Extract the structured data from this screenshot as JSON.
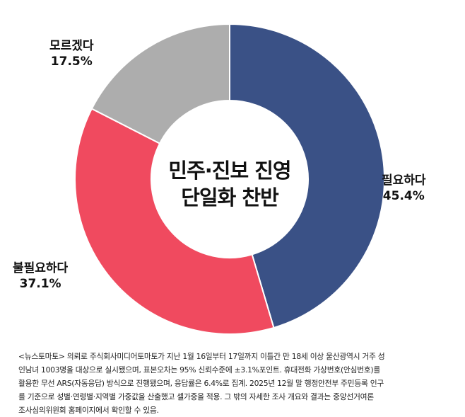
{
  "chart_data": {
    "type": "pie",
    "title": "민주·진보 진영 단일화 찬반",
    "title_lines": [
      "민주·진보 진영",
      "단일화 찬반"
    ],
    "categories": [
      "필요하다",
      "불필요하다",
      "모르겠다"
    ],
    "values": [
      45.4,
      37.1,
      17.5
    ],
    "value_labels": [
      "45.4%",
      "37.1%",
      "17.5%"
    ],
    "colors": [
      "#3A5186",
      "#F04A5F",
      "#ADADAD"
    ],
    "donut": true
  },
  "note": {
    "lines": [
      "<뉴스토마토> 의뢰로 주식회사미디어토마토가 지난 1월 16일부터 17일까지 이틀간 만 18세 이상 울산광역시 거주 성",
      "인남녀 1003명을 대상으로 실시됐으며, 표본오차는 95% 신뢰수준에 ±3.1%포인트. 휴대전화 가상번호(안심번호)를",
      "활용한 무선 ARS(자동응답) 방식으로 진행됐으며, 응답률은 6.4%로 집계. 2025년 12월 말 행정안전부 주민등록 인구",
      "를 기준으로 성별·연령별·지역별 가중값을 산출했고 셀가중을 적용. 그 밖의 자세한 조사 개요와 결과는 중앙선거여론",
      "조사심의위원회 홈페이지에서 확인할 수 있음."
    ]
  }
}
